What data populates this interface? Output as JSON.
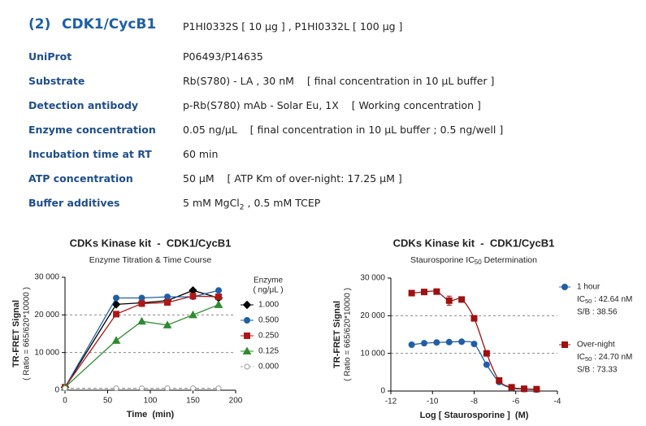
{
  "header": {
    "number": "(2)",
    "title": "CDK1/CycB1",
    "catalog": "P1HI0332S [ 10 μg ] , P1HI0332L [ 100 μg ]"
  },
  "rows": [
    {
      "label": "UniProt",
      "value": "P06493/P14635"
    },
    {
      "label": "Substrate",
      "value": "Rb(S780) - LA , 30 nM    [ final concentration in 10 μL buffer ]"
    },
    {
      "label": "Detection antibody",
      "value": "p-Rb(S780) mAb - Solar Eu, 1X    [ Working concentration ]"
    },
    {
      "label": "Enzyme concentration",
      "value": "0.05 ng/μL    [ final concentration in 10 μL buffer ; 0.5 ng/well ]"
    },
    {
      "label": "Incubation time at RT",
      "value": "60 min"
    },
    {
      "label": "ATP concentration",
      "value": "50 μM    [ ATP Km of over-night: 17.25 μM ]"
    },
    {
      "label": "Buffer additives",
      "value": "5 mM MgCl",
      "value_sub": "2",
      "value_rest": " , 0.5 mM TCEP"
    }
  ],
  "chart_data": [
    {
      "type": "line",
      "title": "CDKs Kinase kit  -  CDK1/CycB1",
      "subtitle": "Enzyme Titration & Time Course",
      "xlabel": "Time  (min)",
      "ylabel": "TR-FRET Signal",
      "ylabel_note": "( Ratio = 665/620*10000 )",
      "legend_title": "Enzyme",
      "legend_unit": "( ng/μL )",
      "legend": "right",
      "x": [
        0,
        60,
        90,
        120,
        150,
        180
      ],
      "series": [
        {
          "name": "1.000",
          "color": "#000000",
          "marker": "diamond",
          "values": [
            800,
            22800,
            23200,
            23800,
            26500,
            24500
          ]
        },
        {
          "name": "0.500",
          "color": "#1f5fa8",
          "marker": "circle",
          "values": [
            800,
            24500,
            24500,
            24800,
            24800,
            26500
          ]
        },
        {
          "name": "0.250",
          "color": "#b01818",
          "marker": "square",
          "values": [
            800,
            20200,
            23000,
            23300,
            25000,
            24800
          ]
        },
        {
          "name": "0.125",
          "color": "#2e8b2e",
          "marker": "triangle",
          "values": [
            800,
            13200,
            18300,
            17300,
            20000,
            22700
          ]
        },
        {
          "name": "0.000",
          "color": "#9a9a9a",
          "marker": "circle-open",
          "dashed": true,
          "values": [
            500,
            500,
            500,
            500,
            500,
            500
          ]
        }
      ],
      "xlim": [
        0,
        200
      ],
      "xticks": [
        0,
        50,
        100,
        150,
        200
      ],
      "ylim": [
        0,
        30000
      ],
      "yticks": [
        0,
        {
          "value": 10000,
          "label": "10 000"
        },
        {
          "value": 20000,
          "label": "20 000"
        },
        {
          "value": 30000,
          "label": "30 000"
        }
      ],
      "grid": true
    },
    {
      "type": "scatter",
      "title": "CDKs Kinase kit  -  CDK1/CycB1",
      "subtitle": "Staurosporine IC",
      "subtitle_sub": "50",
      "subtitle_rest": " Determination",
      "xlabel": "Log [ Staurosporine ]  (M)",
      "ylabel": "TR-FRET Signal",
      "ylabel_note": "( Ratio = 665/620*10000 )",
      "legend": "right",
      "curve": true,
      "x": [
        -11.0,
        -10.4,
        -9.8,
        -9.2,
        -8.6,
        -8.0,
        -7.4,
        -6.8,
        -6.2,
        -5.6,
        -5.0
      ],
      "series": [
        {
          "name": "1 hour",
          "color": "#1f5fa8",
          "marker": "circle",
          "values": [
            12300,
            12700,
            12900,
            13000,
            13100,
            12500,
            7000,
            2400,
            800,
            500,
            400
          ],
          "ic50_prefix": "IC",
          "ic50_sub": "50",
          "ic50_value": " : 42.64 nM",
          "sb": "S/B : 38.56"
        },
        {
          "name": "Over-night",
          "color": "#a01010",
          "marker": "square",
          "values": [
            26000,
            26300,
            26400,
            24000,
            24300,
            19300,
            10000,
            2800,
            1000,
            600,
            500
          ],
          "errors": [
            null,
            null,
            null,
            1200,
            null,
            null,
            null,
            null,
            null,
            null,
            null
          ],
          "ic50_prefix": "IC",
          "ic50_sub": "50",
          "ic50_value": " : 24.70 nM",
          "sb": "S/B : 73.33"
        }
      ],
      "xlim": [
        -12,
        -4
      ],
      "xticks": [
        -12,
        -10,
        -8,
        -6,
        -4
      ],
      "ylim": [
        0,
        30000
      ],
      "yticks": [
        0,
        {
          "value": 10000,
          "label": "10 000"
        },
        {
          "value": 20000,
          "label": "20 000"
        },
        {
          "value": 30000,
          "label": "30 000"
        }
      ],
      "grid": true
    }
  ]
}
